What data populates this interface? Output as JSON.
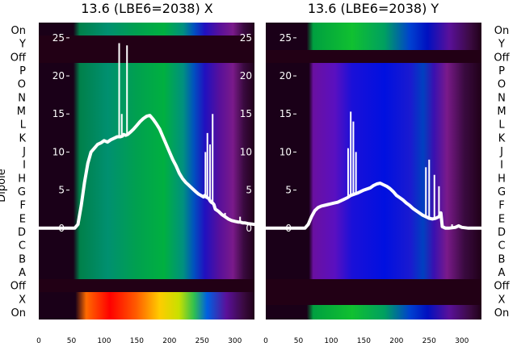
{
  "chart_data": [
    {
      "type": "line",
      "title": "13.6 (LBE6=2038) X",
      "ylabel": "Dipole",
      "x_ticks": [
        0,
        50,
        100,
        150,
        200,
        250,
        300
      ],
      "y_ticks": [
        0,
        5,
        10,
        15,
        20,
        25
      ],
      "xlim": [
        0,
        330
      ],
      "ylim": [
        -12,
        27
      ],
      "dipole_labels": [
        "On",
        "Y",
        "Off",
        "P",
        "O",
        "N",
        "M",
        "L",
        "K",
        "J",
        "I",
        "H",
        "G",
        "F",
        "E",
        "D",
        "C",
        "B",
        "A",
        "Off",
        "X",
        "On"
      ],
      "series": [
        {
          "x": [
            0,
            55,
            60,
            65,
            70,
            75,
            80,
            85,
            90,
            95,
            100,
            105,
            110,
            115,
            120,
            125,
            128,
            130,
            133,
            136,
            140,
            145,
            150,
            155,
            160,
            165,
            170,
            175,
            180,
            185,
            190,
            195,
            200,
            205,
            210,
            215,
            220,
            225,
            230,
            235,
            240,
            244,
            248,
            250,
            252,
            254,
            256,
            258,
            260,
            262,
            264,
            266,
            268,
            270,
            275,
            280,
            285,
            290,
            295,
            300,
            305,
            308,
            312,
            315,
            320,
            330
          ],
          "y": [
            0,
            0,
            0.5,
            3,
            6,
            8.5,
            10,
            10.5,
            11,
            11.2,
            11.5,
            11.3,
            11.6,
            11.8,
            12,
            12,
            12.1,
            12.3,
            12.2,
            12.3,
            12.6,
            13,
            13.5,
            14,
            14.4,
            14.7,
            14.8,
            14.3,
            13.7,
            13,
            12,
            11,
            10,
            9,
            8.2,
            7.2,
            6.5,
            6,
            5.6,
            5.2,
            4.8,
            4.5,
            4.3,
            4.2,
            4.1,
            4.3,
            4.1,
            4,
            3.9,
            3.6,
            3.4,
            3.3,
            3.1,
            2.5,
            2.2,
            1.8,
            1.5,
            1.2,
            1,
            0.9,
            0.8,
            0.8,
            0.7,
            0.7,
            0.6,
            0.5
          ]
        }
      ],
      "spikes": [
        {
          "x": 123,
          "y": 24.3
        },
        {
          "x": 127,
          "y": 15
        },
        {
          "x": 135,
          "y": 24
        },
        {
          "x": 255,
          "y": 10
        },
        {
          "x": 258,
          "y": 12.5
        },
        {
          "x": 262,
          "y": 11
        },
        {
          "x": 266,
          "y": 15
        },
        {
          "x": 285,
          "y": 2
        },
        {
          "x": 308,
          "y": 1.5
        }
      ]
    },
    {
      "type": "line",
      "title": "13.6 (LBE6=2038) Y",
      "x_ticks": [
        0,
        50,
        100,
        150,
        200,
        250,
        300
      ],
      "y_ticks": [
        0,
        5,
        10,
        15,
        20,
        25
      ],
      "xlim": [
        0,
        330
      ],
      "ylim": [
        -12,
        27
      ],
      "dipole_labels": [
        "On",
        "Y",
        "Off",
        "P",
        "O",
        "N",
        "M",
        "L",
        "K",
        "J",
        "I",
        "H",
        "G",
        "F",
        "E",
        "D",
        "C",
        "B",
        "A",
        "Off",
        "X",
        "On"
      ],
      "series": [
        {
          "x": [
            0,
            50,
            55,
            60,
            65,
            70,
            75,
            80,
            85,
            90,
            95,
            100,
            105,
            110,
            115,
            120,
            125,
            130,
            140,
            150,
            160,
            165,
            170,
            175,
            180,
            185,
            190,
            195,
            200,
            205,
            210,
            215,
            220,
            225,
            230,
            235,
            240,
            245,
            250,
            255,
            260,
            265,
            268,
            270,
            275,
            280,
            290,
            295,
            300,
            310,
            330
          ],
          "y": [
            0,
            0,
            0,
            0,
            0.5,
            1.5,
            2.3,
            2.7,
            2.9,
            3,
            3.1,
            3.2,
            3.3,
            3.4,
            3.6,
            3.8,
            4,
            4.3,
            4.6,
            5,
            5.3,
            5.6,
            5.8,
            5.9,
            5.7,
            5.5,
            5.2,
            4.8,
            4.3,
            4,
            3.7,
            3.3,
            3,
            2.6,
            2.3,
            2,
            1.7,
            1.5,
            1.3,
            1.2,
            1.3,
            1.5,
            2,
            0.2,
            0,
            0,
            0.1,
            0.3,
            0.1,
            0,
            0
          ]
        }
      ],
      "spikes": [
        {
          "x": 126,
          "y": 10.5
        },
        {
          "x": 130,
          "y": 15.3
        },
        {
          "x": 134,
          "y": 14
        },
        {
          "x": 138,
          "y": 10
        },
        {
          "x": 245,
          "y": 8
        },
        {
          "x": 250,
          "y": 9
        },
        {
          "x": 258,
          "y": 7
        },
        {
          "x": 265,
          "y": 5.5
        },
        {
          "x": 285,
          "y": 0.5
        }
      ]
    }
  ]
}
